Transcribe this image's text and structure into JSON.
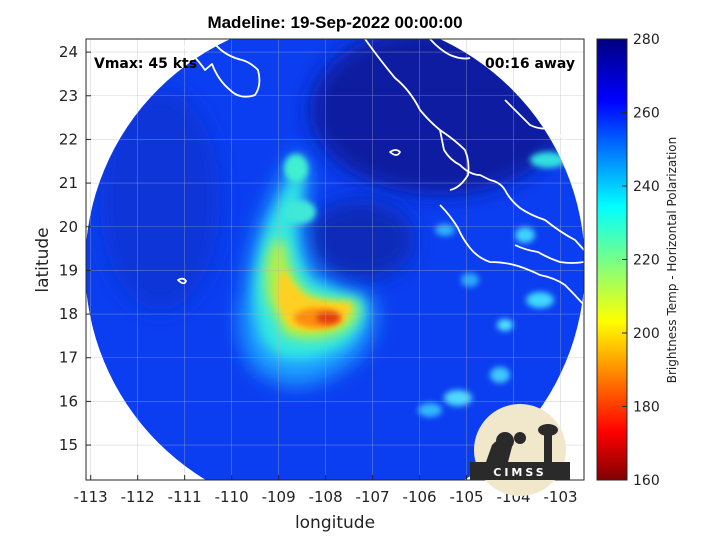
{
  "title": "Madeline: 19-Sep-2022 00:00:00",
  "vmax_label": "Vmax: 45 kts",
  "time_label": "00:16 away",
  "logo_text": "CIMSS",
  "colors": {
    "background_field": "#0b3ef0",
    "coast": "#ffffff",
    "grid": "#b4b4b4"
  },
  "chart_data": {
    "type": "heatmap",
    "xlabel": "longitude",
    "ylabel": "latitude",
    "xlim": [
      -113.1,
      -102.5
    ],
    "ylim": [
      14.2,
      24.3
    ],
    "xticks": [
      -113,
      -112,
      -111,
      -110,
      -109,
      -108,
      -107,
      -106,
      -105,
      -104,
      -103
    ],
    "yticks": [
      15,
      16,
      17,
      18,
      19,
      20,
      21,
      22,
      23,
      24
    ],
    "grid": true,
    "colorbar": {
      "label": "Brightness Temp - Horizontal Polarization",
      "min": 160,
      "max": 280,
      "ticks": [
        160,
        180,
        200,
        220,
        240,
        260,
        280
      ],
      "colormap": "jet"
    },
    "swath": {
      "center_lon": -107.8,
      "center_lat": 19.35,
      "radius_deg": 5.5
    },
    "features": [
      {
        "name": "storm-core",
        "lon": -108.2,
        "lat": 18.1,
        "min_tb": 185
      },
      {
        "name": "rain-band-north",
        "lon": -108.9,
        "lat": 20.3,
        "min_tb": 230
      },
      {
        "name": "eye-region",
        "lon": -107.6,
        "lat": 19.6,
        "min_tb": 270
      }
    ]
  }
}
